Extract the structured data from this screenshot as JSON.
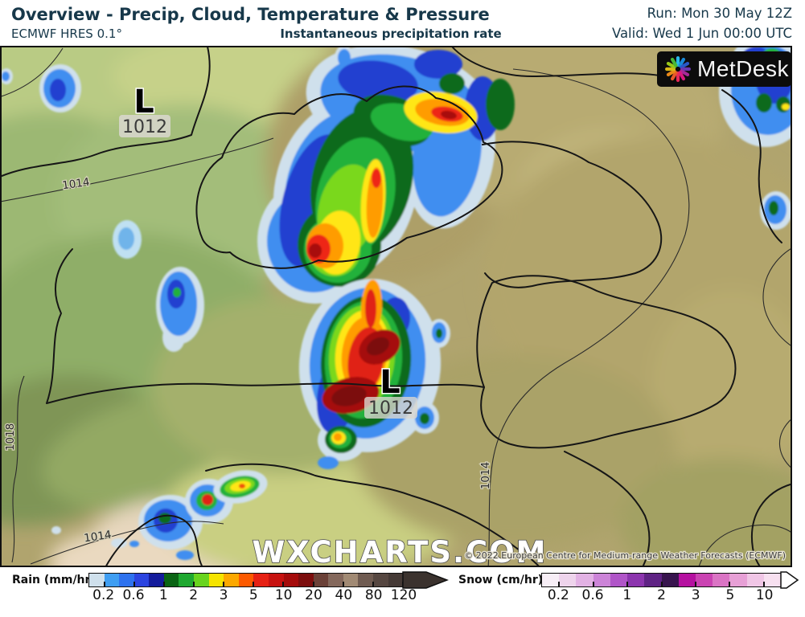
{
  "header": {
    "title": "Overview - Precip, Cloud, Temperature & Pressure",
    "model": "ECMWF HRES 0.1°",
    "subtitle": "Instantaneous precipitation rate",
    "run_label": "Run: Mon 30 May 12Z",
    "valid_label": "Valid: Wed 1 Jun 00:00 UTC"
  },
  "logo": {
    "name": "MetDesk"
  },
  "map": {
    "watermark": "WXCHARTS.COM",
    "copyright": "© 2022 European Centre for Medium-range Weather Forecasts (ECMWF)",
    "pressure_lows": [
      {
        "symbol": "L",
        "value": "1012"
      },
      {
        "symbol": "L",
        "value": "1012"
      }
    ],
    "isobar_labels": [
      {
        "value": "1014"
      },
      {
        "value": "1018"
      },
      {
        "value": "1014"
      },
      {
        "value": "1014"
      }
    ]
  },
  "legend": {
    "rain": {
      "label": "Rain (mm/hr)",
      "ticks": [
        "0.2",
        "0.6",
        "1",
        "2",
        "3",
        "5",
        "10",
        "20",
        "40",
        "80",
        "120"
      ],
      "colors": [
        "#cfe0ec",
        "#3f9ef2",
        "#2e72ee",
        "#2b44e0",
        "#141c9c",
        "#0a6414",
        "#1fa830",
        "#68d41e",
        "#f5e400",
        "#fca800",
        "#fc5a00",
        "#e62114",
        "#c71210",
        "#a50b0b",
        "#7c0d0d",
        "#6b4138",
        "#84685c",
        "#a18a74",
        "#6f5b51",
        "#564741",
        "#453a36"
      ],
      "arrow_color": "#3b322e"
    },
    "snow": {
      "label": "Snow (cm/hr)",
      "ticks": [
        "0.2",
        "0.6",
        "1",
        "2",
        "3",
        "5",
        "10"
      ],
      "colors": [
        "#f7eef6",
        "#eed4ec",
        "#e2b2e4",
        "#cc84d8",
        "#b055c8",
        "#8c35ae",
        "#5f2384",
        "#38154e",
        "#b511a0",
        "#ca43b2",
        "#da74c4",
        "#e7a0d6",
        "#f0c6e6",
        "#f7e0f0"
      ],
      "arrow_color": "#ffffff"
    }
  }
}
